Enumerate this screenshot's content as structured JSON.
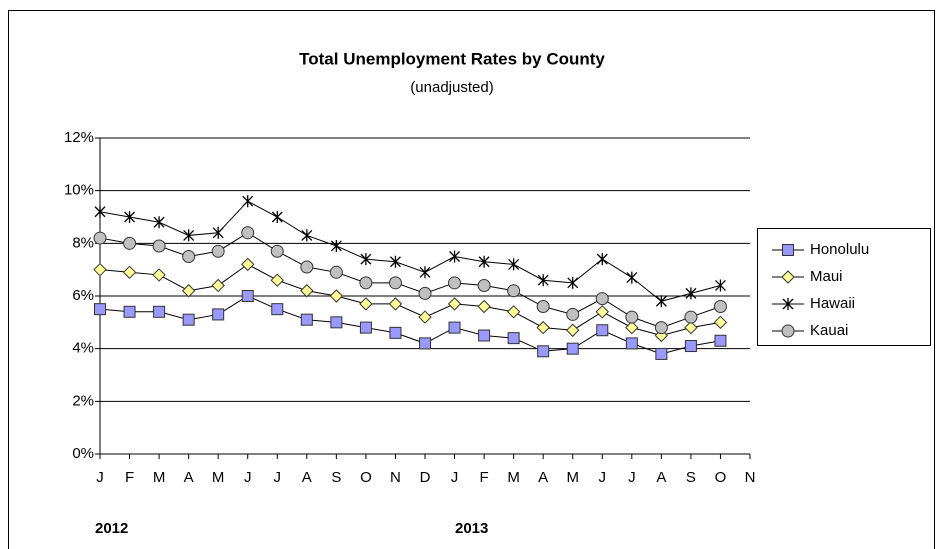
{
  "chart_data": {
    "type": "line",
    "title": "Total Unemployment Rates by County",
    "subtitle": "(unadjusted)",
    "categories": [
      "J",
      "F",
      "M",
      "A",
      "M",
      "J",
      "J",
      "A",
      "S",
      "O",
      "N",
      "D",
      "J",
      "F",
      "M",
      "A",
      "M",
      "J",
      "J",
      "A",
      "S",
      "O",
      "N"
    ],
    "annotations": [
      "2012",
      "2013"
    ],
    "series": [
      {
        "name": "Honolulu",
        "color": "#9999ff",
        "marker": "square",
        "values": [
          5.5,
          5.4,
          5.4,
          5.1,
          5.3,
          6.0,
          5.5,
          5.1,
          5.0,
          4.8,
          4.6,
          4.2,
          4.8,
          4.5,
          4.4,
          3.9,
          4.0,
          4.7,
          4.2,
          3.8,
          4.1,
          4.3,
          null
        ]
      },
      {
        "name": "Maui",
        "color": "#ffff99",
        "marker": "diamond",
        "values": [
          7.0,
          6.9,
          6.8,
          6.2,
          6.4,
          7.2,
          6.6,
          6.2,
          6.0,
          5.7,
          5.7,
          5.2,
          5.7,
          5.6,
          5.4,
          4.8,
          4.7,
          5.4,
          4.8,
          4.5,
          4.8,
          5.0,
          null
        ]
      },
      {
        "name": "Hawaii",
        "color": "#000000",
        "marker": "star",
        "values": [
          9.2,
          9.0,
          8.8,
          8.3,
          8.4,
          9.6,
          9.0,
          8.3,
          7.9,
          7.4,
          7.3,
          6.9,
          7.5,
          7.3,
          7.2,
          6.6,
          6.5,
          7.4,
          6.7,
          5.8,
          6.1,
          6.4,
          null
        ]
      },
      {
        "name": "Kauai",
        "color": "#c0c0c0",
        "marker": "circle",
        "values": [
          8.2,
          8.0,
          7.9,
          7.5,
          7.7,
          8.4,
          7.7,
          7.1,
          6.9,
          6.5,
          6.5,
          6.1,
          6.5,
          6.4,
          6.2,
          5.6,
          5.3,
          5.9,
          5.2,
          4.8,
          5.2,
          5.6,
          null
        ]
      }
    ],
    "ylim": [
      0,
      12
    ],
    "yticks": [
      {
        "value": 0,
        "label": "0%"
      },
      {
        "value": 2,
        "label": "2%"
      },
      {
        "value": 4,
        "label": "4%"
      },
      {
        "value": 6,
        "label": "6%"
      },
      {
        "value": 8,
        "label": "8%"
      },
      {
        "value": 10,
        "label": "10%"
      },
      {
        "value": 12,
        "label": "12%"
      }
    ],
    "grid": true,
    "legend": "right"
  }
}
